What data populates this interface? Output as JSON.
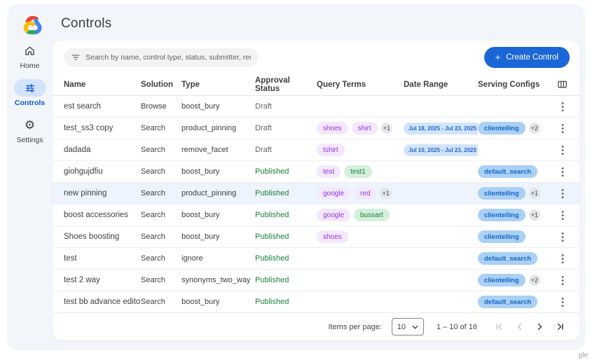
{
  "header": {
    "title": "Controls"
  },
  "sidebar": {
    "items": [
      {
        "label": "Home",
        "icon": "home-icon",
        "active": false
      },
      {
        "label": "Controls",
        "icon": "tune-icon",
        "active": true
      },
      {
        "label": "Settings",
        "icon": "gear-icon",
        "active": false
      }
    ]
  },
  "toolbar": {
    "search_placeholder": "Search by name, control type, status, submitter, requested on",
    "create_button_plus": "+",
    "create_button_label": "Create Control"
  },
  "table": {
    "columns": [
      "Name",
      "Solution",
      "Type",
      "Approval Status",
      "Query Terms",
      "Date Range",
      "Serving Configs"
    ],
    "rows": [
      {
        "name": "est search",
        "solution": "Browse",
        "type": "boost_bury",
        "status": "Draft",
        "query_terms": [],
        "query_more": "",
        "date_range": "",
        "serving_configs": [],
        "serving_more": "",
        "highlighted": false
      },
      {
        "name": "test_ss3 copy",
        "solution": "Search",
        "type": "product_pinning",
        "status": "Draft",
        "query_terms": [
          {
            "label": "shoes",
            "color": "purple"
          },
          {
            "label": "shirt",
            "color": "purple"
          }
        ],
        "query_more": "+1",
        "date_range": "Jul 18, 2025 - Jul 23, 2025",
        "serving_configs": [
          "clientelling"
        ],
        "serving_more": "+2",
        "highlighted": false
      },
      {
        "name": "dadada",
        "solution": "Search",
        "type": "remove_facet",
        "status": "Draft",
        "query_terms": [
          {
            "label": "tshirt",
            "color": "purple"
          }
        ],
        "query_more": "",
        "date_range": "Jul 10, 2025 - Jul 23, 2025",
        "serving_configs": [],
        "serving_more": "",
        "highlighted": false
      },
      {
        "name": "giohgujdfiu",
        "solution": "Search",
        "type": "boost_bury",
        "status": "Published",
        "query_terms": [
          {
            "label": "test",
            "color": "purple"
          },
          {
            "label": "test1",
            "color": "green"
          }
        ],
        "query_more": "",
        "date_range": "",
        "serving_configs": [
          "default_search"
        ],
        "serving_more": "",
        "highlighted": false
      },
      {
        "name": "new pinning",
        "solution": "Search",
        "type": "product_pinning",
        "status": "Published",
        "query_terms": [
          {
            "label": "google",
            "color": "purple"
          },
          {
            "label": "red",
            "color": "purple"
          }
        ],
        "query_more": "+1",
        "date_range": "",
        "serving_configs": [
          "clientelling"
        ],
        "serving_more": "+1",
        "highlighted": true
      },
      {
        "name": "boost accessories",
        "solution": "Search",
        "type": "boost_bury",
        "status": "Published",
        "query_terms": [
          {
            "label": "google",
            "color": "purple"
          },
          {
            "label": "bussart",
            "color": "green"
          }
        ],
        "query_more": "",
        "date_range": "",
        "serving_configs": [
          "clientelling"
        ],
        "serving_more": "+1",
        "highlighted": false
      },
      {
        "name": "Shoes boosting",
        "solution": "Search",
        "type": "boost_bury",
        "status": "Published",
        "query_terms": [
          {
            "label": "shoes",
            "color": "purple"
          }
        ],
        "query_more": "",
        "date_range": "",
        "serving_configs": [
          "clientelling"
        ],
        "serving_more": "",
        "highlighted": false
      },
      {
        "name": "test",
        "solution": "Search",
        "type": "ignore",
        "status": "Published",
        "query_terms": [],
        "query_more": "",
        "date_range": "",
        "serving_configs": [
          "default_search"
        ],
        "serving_more": "",
        "highlighted": false
      },
      {
        "name": "test 2 way",
        "solution": "Search",
        "type": "synonyms_two_way",
        "status": "Published",
        "query_terms": [],
        "query_more": "",
        "date_range": "",
        "serving_configs": [
          "clientelling"
        ],
        "serving_more": "+2",
        "highlighted": false
      },
      {
        "name": "test bb advance editor",
        "solution": "Search",
        "type": "boost_bury",
        "status": "Published",
        "query_terms": [],
        "query_more": "",
        "date_range": "",
        "serving_configs": [
          "default_search"
        ],
        "serving_more": "",
        "highlighted": false
      }
    ]
  },
  "pagination": {
    "items_per_page_label": "Items per page:",
    "items_per_page_value": "10",
    "range_label": "1 – 10 of 16"
  },
  "watermark": "gle",
  "colors": {
    "accent_blue": "#1a66d6",
    "sidebar_active_pill": "#d3e3fd",
    "chip_purple_bg": "#f3e8fd",
    "chip_purple_text": "#9334e6",
    "chip_green_bg": "#d4efdb",
    "chip_green_text": "#188038",
    "chip_date_bg": "#d2e3fc",
    "chip_date_text": "#1967d2",
    "chip_serving_bg": "#a9d0f5",
    "chip_serving_text": "#1765c8",
    "published_text": "#188038",
    "draft_text": "#5f6368",
    "row_highlight": "#eef4fe"
  }
}
